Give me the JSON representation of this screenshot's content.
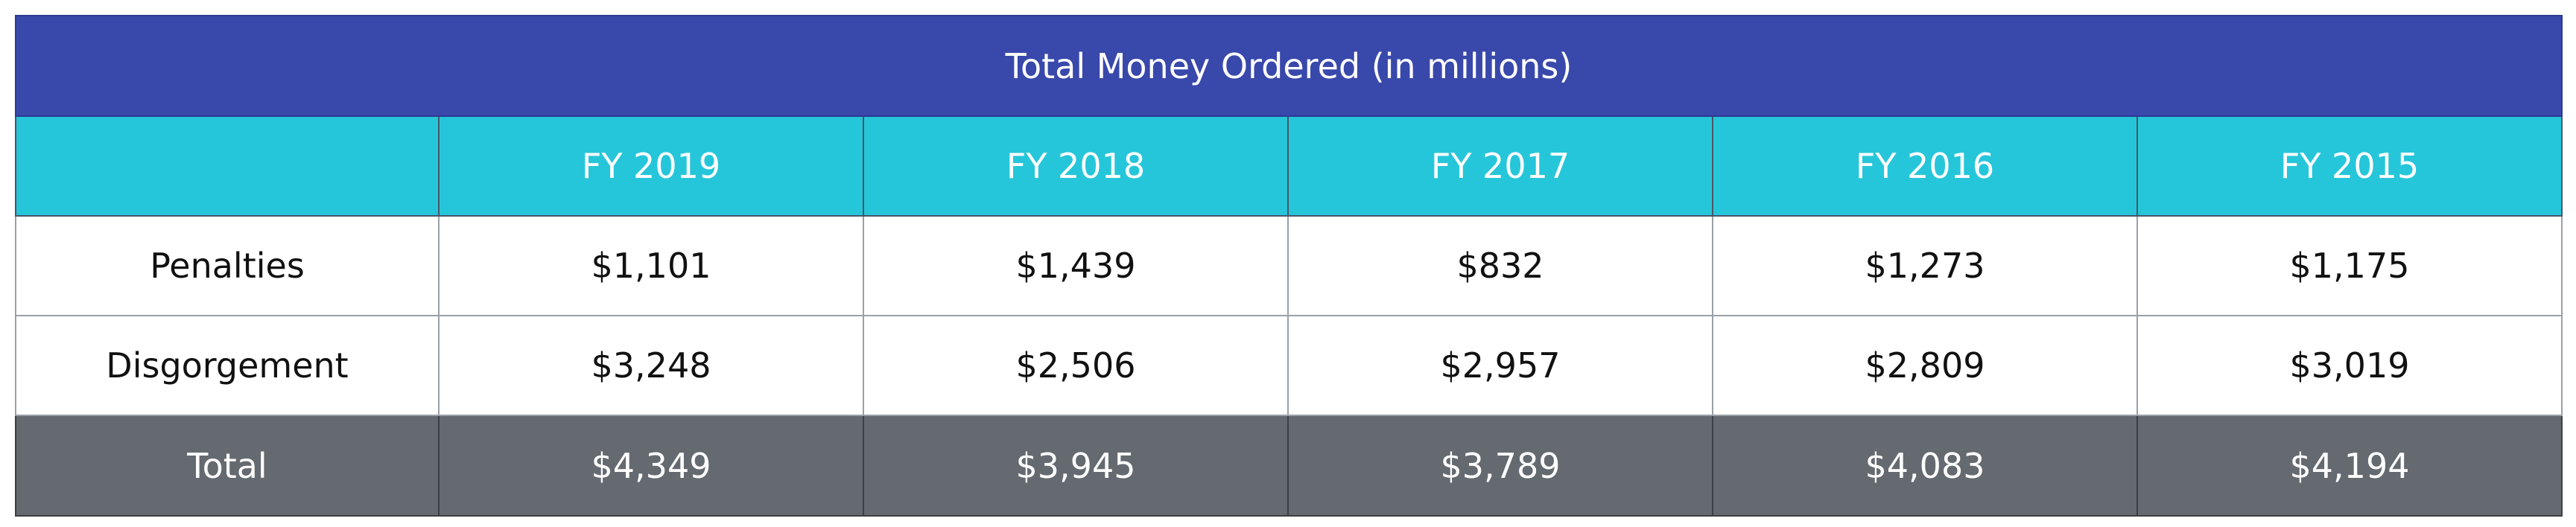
{
  "chart_data": {
    "type": "table",
    "title": "Total Money Ordered (in millions)",
    "corner": "",
    "columns": [
      "FY 2019",
      "FY 2018",
      "FY 2017",
      "FY 2016",
      "FY 2015"
    ],
    "rows": [
      {
        "label": "Penalties",
        "values": [
          "$1,101",
          "$1,439",
          "$832",
          "$1,273",
          "$1,175"
        ]
      },
      {
        "label": "Disgorgement",
        "values": [
          "$3,248",
          "$2,506",
          "$2,957",
          "$2,809",
          "$3,019"
        ]
      },
      {
        "label": "Total",
        "values": [
          "$4,349",
          "$3,945",
          "$3,789",
          "$4,083",
          "$4,194"
        ]
      }
    ],
    "numeric_values_millions": {
      "Penalties": [
        1101,
        1439,
        832,
        1273,
        1175
      ],
      "Disgorgement": [
        3248,
        2506,
        2957,
        2809,
        3019
      ],
      "Total": [
        4349,
        3945,
        3789,
        4083,
        4194
      ]
    }
  },
  "colors": {
    "title_bg": "#3948AB",
    "header_bg": "#26C6DA",
    "body_bg": "#FFFFFF",
    "total_bg": "#656A70",
    "light_text": "#FFFFFF",
    "dark_text": "#111111"
  }
}
